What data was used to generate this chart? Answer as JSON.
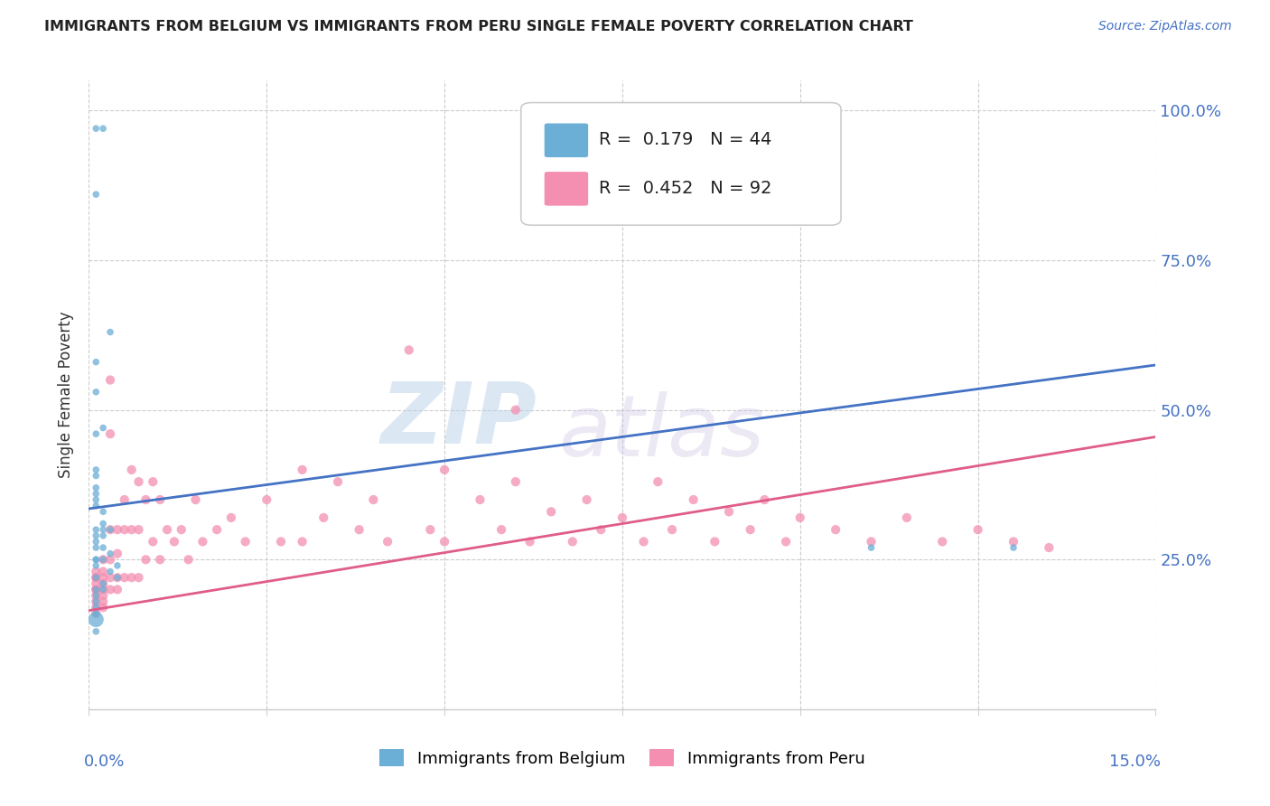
{
  "title": "IMMIGRANTS FROM BELGIUM VS IMMIGRANTS FROM PERU SINGLE FEMALE POVERTY CORRELATION CHART",
  "source": "Source: ZipAtlas.com",
  "ylabel": "Single Female Poverty",
  "xlim": [
    0.0,
    0.15
  ],
  "ylim": [
    0.0,
    1.05
  ],
  "belgium_R": 0.179,
  "belgium_N": 44,
  "peru_R": 0.452,
  "peru_N": 92,
  "belgium_color": "#6baed6",
  "peru_color": "#f48fb1",
  "belgium_line_color": "#4472c4",
  "peru_line_color": "#e05c8a",
  "watermark_zip": "ZIP",
  "watermark_atlas": "atlas",
  "bel_line_y0": 0.335,
  "bel_line_y1": 0.575,
  "peru_line_y0": 0.165,
  "peru_line_y1": 0.455,
  "belgium_x": [
    0.001,
    0.002,
    0.001,
    0.003,
    0.001,
    0.001,
    0.002,
    0.001,
    0.001,
    0.001,
    0.001,
    0.001,
    0.001,
    0.001,
    0.002,
    0.002,
    0.001,
    0.003,
    0.002,
    0.001,
    0.002,
    0.001,
    0.001,
    0.002,
    0.003,
    0.001,
    0.002,
    0.001,
    0.001,
    0.004,
    0.003,
    0.001,
    0.004,
    0.002,
    0.002,
    0.001,
    0.001,
    0.001,
    0.001,
    0.001,
    0.001,
    0.001,
    0.11,
    0.13
  ],
  "belgium_y": [
    0.97,
    0.97,
    0.86,
    0.63,
    0.58,
    0.53,
    0.47,
    0.46,
    0.4,
    0.39,
    0.37,
    0.36,
    0.35,
    0.34,
    0.33,
    0.31,
    0.3,
    0.3,
    0.3,
    0.29,
    0.29,
    0.28,
    0.27,
    0.27,
    0.26,
    0.25,
    0.25,
    0.25,
    0.24,
    0.24,
    0.23,
    0.22,
    0.22,
    0.21,
    0.2,
    0.2,
    0.19,
    0.18,
    0.17,
    0.16,
    0.15,
    0.13,
    0.27,
    0.27
  ],
  "belgium_sizes": [
    30,
    30,
    30,
    30,
    30,
    30,
    30,
    30,
    30,
    30,
    30,
    30,
    30,
    30,
    30,
    30,
    30,
    30,
    30,
    30,
    30,
    30,
    30,
    30,
    30,
    30,
    30,
    30,
    30,
    30,
    30,
    30,
    30,
    30,
    30,
    30,
    30,
    30,
    30,
    30,
    150,
    30,
    30,
    30
  ],
  "peru_x": [
    0.001,
    0.001,
    0.001,
    0.001,
    0.001,
    0.001,
    0.001,
    0.001,
    0.001,
    0.001,
    0.002,
    0.002,
    0.002,
    0.002,
    0.002,
    0.002,
    0.002,
    0.002,
    0.003,
    0.003,
    0.003,
    0.003,
    0.003,
    0.004,
    0.004,
    0.004,
    0.004,
    0.005,
    0.005,
    0.005,
    0.006,
    0.006,
    0.006,
    0.007,
    0.007,
    0.007,
    0.008,
    0.008,
    0.009,
    0.009,
    0.01,
    0.01,
    0.011,
    0.012,
    0.013,
    0.014,
    0.015,
    0.016,
    0.018,
    0.02,
    0.022,
    0.025,
    0.027,
    0.03,
    0.03,
    0.033,
    0.035,
    0.038,
    0.04,
    0.042,
    0.045,
    0.048,
    0.05,
    0.05,
    0.055,
    0.058,
    0.06,
    0.062,
    0.065,
    0.068,
    0.07,
    0.072,
    0.075,
    0.078,
    0.08,
    0.082,
    0.085,
    0.088,
    0.09,
    0.093,
    0.095,
    0.098,
    0.1,
    0.105,
    0.11,
    0.115,
    0.12,
    0.125,
    0.13,
    0.135,
    0.003,
    0.06
  ],
  "peru_y": [
    0.23,
    0.22,
    0.22,
    0.21,
    0.2,
    0.2,
    0.19,
    0.18,
    0.17,
    0.16,
    0.25,
    0.23,
    0.22,
    0.21,
    0.2,
    0.19,
    0.18,
    0.17,
    0.46,
    0.3,
    0.25,
    0.22,
    0.2,
    0.3,
    0.26,
    0.22,
    0.2,
    0.35,
    0.3,
    0.22,
    0.4,
    0.3,
    0.22,
    0.38,
    0.3,
    0.22,
    0.35,
    0.25,
    0.38,
    0.28,
    0.35,
    0.25,
    0.3,
    0.28,
    0.3,
    0.25,
    0.35,
    0.28,
    0.3,
    0.32,
    0.28,
    0.35,
    0.28,
    0.4,
    0.28,
    0.32,
    0.38,
    0.3,
    0.35,
    0.28,
    0.6,
    0.3,
    0.4,
    0.28,
    0.35,
    0.3,
    0.38,
    0.28,
    0.33,
    0.28,
    0.35,
    0.3,
    0.32,
    0.28,
    0.38,
    0.3,
    0.35,
    0.28,
    0.33,
    0.3,
    0.35,
    0.28,
    0.32,
    0.3,
    0.28,
    0.32,
    0.28,
    0.3,
    0.28,
    0.27,
    0.55,
    0.5
  ]
}
